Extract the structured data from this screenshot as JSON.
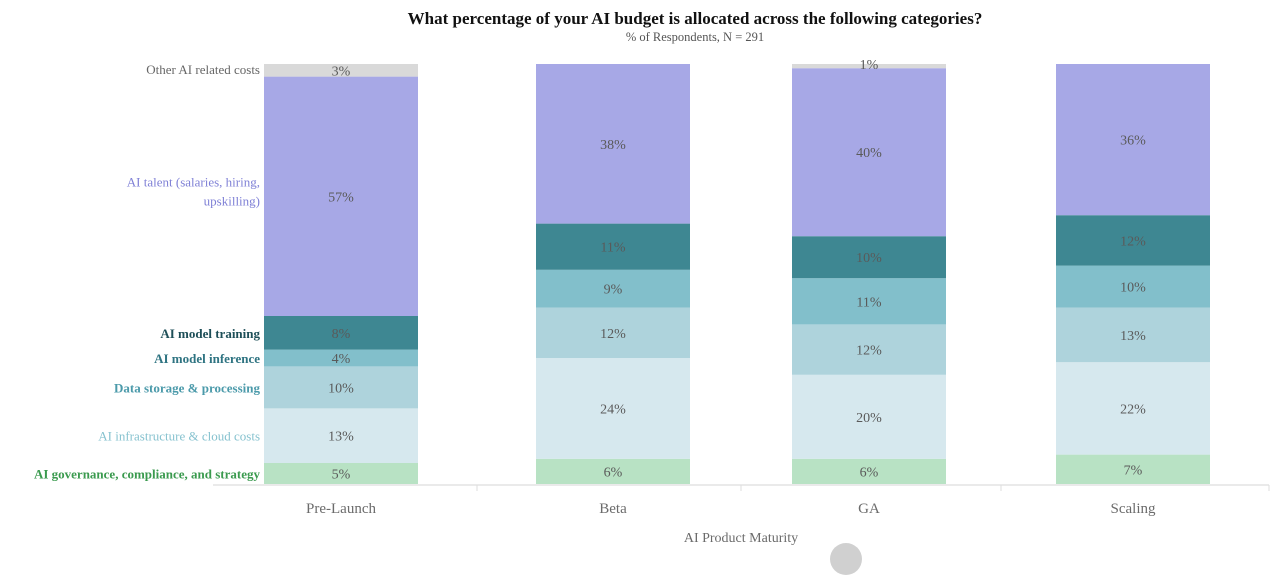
{
  "chart_data": {
    "type": "bar",
    "stacked": true,
    "title": "What percentage of your AI budget is allocated across the following categories?",
    "subtitle": "% of Respondents, N = 291",
    "xlabel": "AI Product Maturity",
    "ylabel": "",
    "ylim": [
      0,
      100
    ],
    "grid": false,
    "legend_placement": "left",
    "categories": [
      "Pre-Launch",
      "Beta",
      "GA",
      "Scaling"
    ],
    "series": [
      {
        "name": "AI governance, compliance, and strategy",
        "color": "#b8e2c4",
        "label_color": "#3a9a4e",
        "values": [
          5,
          6,
          6,
          7
        ]
      },
      {
        "name": "AI infrastructure & cloud costs",
        "color": "#d6e8ee",
        "label_color": "#86c2cf",
        "values": [
          13,
          24,
          20,
          22
        ]
      },
      {
        "name": "Data storage & processing",
        "color": "#aed3dc",
        "label_color": "#4b9aaa",
        "values": [
          10,
          12,
          12,
          13
        ]
      },
      {
        "name": "AI model inference",
        "color": "#82bfcb",
        "label_color": "#2f7482",
        "values": [
          4,
          9,
          11,
          10
        ]
      },
      {
        "name": "AI model training",
        "color": "#3e8792",
        "label_color": "#1e4f58",
        "values": [
          8,
          11,
          10,
          12
        ]
      },
      {
        "name": "AI talent (salaries, hiring, upskilling)",
        "color": "#a7a8e6",
        "label_color": "#7f80d6",
        "values": [
          57,
          38,
          40,
          36
        ]
      },
      {
        "name": "Other AI related costs",
        "color": "#d9d9d9",
        "label_color": "#666666",
        "values": [
          3,
          0,
          1,
          0
        ]
      }
    ],
    "legend_lines": [
      [
        "AI governance, compliance, and strategy"
      ],
      [
        "AI infrastructure & cloud costs"
      ],
      [
        "Data storage & processing"
      ],
      [
        "AI model inference"
      ],
      [
        "AI model training"
      ],
      [
        "AI talent (salaries, hiring,",
        "upskilling)"
      ],
      [
        "Other AI related costs"
      ]
    ],
    "value_suffix": "%"
  }
}
